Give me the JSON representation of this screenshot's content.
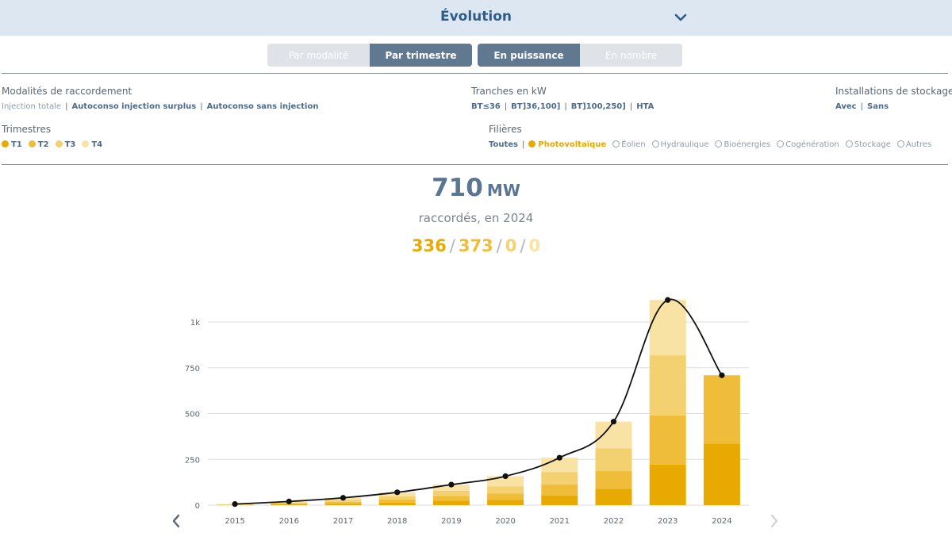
{
  "header": {
    "title": "Évolution"
  },
  "view_toggle": [
    {
      "label": "Par modalité",
      "active": false
    },
    {
      "label": "Par trimestre",
      "active": true
    }
  ],
  "unit_toggle": [
    {
      "label": "En puissance",
      "active": true
    },
    {
      "label": "En nombre",
      "active": false
    }
  ],
  "filters": {
    "modalites": {
      "label": "Modalités de raccordement",
      "options": [
        "Injection totale",
        "Autoconso injection surplus",
        "Autoconso sans injection"
      ]
    },
    "tranches": {
      "label": "Tranches en kW",
      "options": [
        "BT≤36",
        "BT]36,100]",
        "BT]100,250]",
        "HTA"
      ]
    },
    "stockage": {
      "label": "Installations de stockage",
      "options": [
        "Avec",
        "Sans"
      ]
    },
    "trimestres": {
      "label": "Trimestres",
      "options": [
        "T1",
        "T2",
        "T3",
        "T4"
      ]
    },
    "filieres": {
      "label": "Filières",
      "all": "Toutes",
      "options": [
        "Photovoltaïque",
        "Éolien",
        "Hydraulique",
        "Bioénergies",
        "Cogénération",
        "Stockage",
        "Autres"
      ],
      "selected": "Photovoltaïque"
    }
  },
  "summary": {
    "value": "710",
    "unit": "MW",
    "caption": "raccordés, en 2024",
    "quarters": [
      "336",
      "373",
      "0",
      "0"
    ]
  },
  "colors": {
    "t1": "#e8a900",
    "t2": "#efbd3a",
    "t3": "#f3d070",
    "t4": "#f8e2a4",
    "line": "#111111"
  },
  "chart_data": {
    "type": "bar",
    "stacked": true,
    "categories": [
      "2015",
      "2016",
      "2017",
      "2018",
      "2019",
      "2020",
      "2021",
      "2022",
      "2023",
      "2024"
    ],
    "series": [
      {
        "name": "T1",
        "values": [
          1,
          4,
          8,
          14,
          25,
          28,
          52,
          90,
          222,
          336
        ]
      },
      {
        "name": "T2",
        "values": [
          2,
          5,
          10,
          17,
          26,
          35,
          61,
          96,
          268,
          373
        ]
      },
      {
        "name": "T3",
        "values": [
          1,
          5,
          10,
          18,
          27,
          40,
          68,
          124,
          328,
          0
        ]
      },
      {
        "name": "T4",
        "values": [
          2,
          6,
          12,
          21,
          34,
          55,
          78,
          146,
          302,
          0
        ]
      }
    ],
    "line": {
      "name": "Total",
      "values": [
        6,
        20,
        40,
        70,
        112,
        158,
        259,
        456,
        1120,
        709
      ]
    },
    "y_ticks": [
      "0",
      "250",
      "500",
      "750",
      "1k"
    ],
    "y_tick_values": [
      0,
      250,
      500,
      750,
      1000
    ],
    "ylim": [
      0,
      1150
    ],
    "grid": true
  }
}
